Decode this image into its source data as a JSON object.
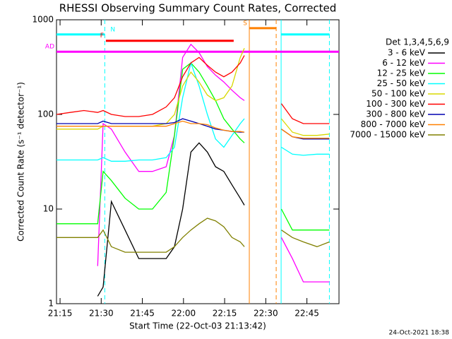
{
  "chart_data": {
    "type": "line",
    "title": "RHESSI Observing Summary Count Rates, Corrected",
    "x_label": "Start Time (22-Oct-03 21:13:42)",
    "y_label": "Corrected Count Rate (s⁻¹ detector⁻¹)",
    "legend_title": "Det 1,3,4,5,6,9",
    "footer": "24-Oct-2021 18:38",
    "log_y": true,
    "xlim": [
      0,
      103
    ],
    "ylim": [
      1,
      1000
    ],
    "yticks": [
      1,
      10,
      100,
      1000
    ],
    "xticks": [
      {
        "value": 1.3,
        "label": "21:15"
      },
      {
        "value": 16.3,
        "label": "21:30"
      },
      {
        "value": 31.3,
        "label": "21:45"
      },
      {
        "value": 46.3,
        "label": "22:00"
      },
      {
        "value": 61.3,
        "label": "22:15"
      },
      {
        "value": 76.3,
        "label": "22:30"
      },
      {
        "value": 91.3,
        "label": "22:45"
      }
    ],
    "x": [
      0,
      5,
      10,
      15,
      17,
      20,
      25,
      30,
      35,
      40,
      43,
      46,
      49,
      52,
      55,
      58,
      61,
      64,
      67,
      68.5,
      75,
      82,
      86,
      90,
      95,
      99.5
    ],
    "series": [
      {
        "name": "3 - 6 keV",
        "color": "#000000",
        "values": [
          null,
          null,
          null,
          1.2,
          1.5,
          12,
          6,
          3,
          3,
          3,
          4,
          10,
          40,
          50,
          40,
          28,
          25,
          18,
          13,
          11,
          null,
          null,
          null,
          null,
          null,
          null
        ]
      },
      {
        "name": "6 - 12 keV",
        "color": "#ff00ff",
        "values": [
          null,
          null,
          null,
          2.5,
          80,
          70,
          40,
          25,
          25,
          28,
          60,
          400,
          550,
          450,
          320,
          260,
          220,
          180,
          150,
          140,
          null,
          5,
          3,
          1.7,
          1.7,
          1.7
        ]
      },
      {
        "name": "12 - 25 keV",
        "color": "#00ff00",
        "values": [
          7,
          7,
          7,
          7,
          25,
          20,
          13,
          10,
          10,
          15,
          60,
          300,
          350,
          280,
          200,
          140,
          90,
          70,
          55,
          50,
          null,
          10,
          6,
          6,
          6,
          6
        ]
      },
      {
        "name": "25 - 50 keV",
        "color": "#00ffff",
        "values": [
          33,
          33,
          33,
          33,
          35,
          32,
          32,
          33,
          33,
          35,
          45,
          150,
          350,
          200,
          100,
          55,
          45,
          60,
          80,
          90,
          null,
          45,
          38,
          37,
          38,
          38
        ]
      },
      {
        "name": "50 - 100 keV",
        "color": "#d8d800",
        "values": [
          70,
          70,
          70,
          70,
          75,
          75,
          75,
          75,
          75,
          80,
          100,
          200,
          280,
          220,
          160,
          140,
          150,
          200,
          400,
          500,
          null,
          90,
          65,
          60,
          60,
          62
        ]
      },
      {
        "name": "100 - 300 keV",
        "color": "#ff0000",
        "values": [
          100,
          105,
          110,
          105,
          110,
          100,
          95,
          95,
          100,
          120,
          150,
          250,
          350,
          400,
          330,
          280,
          250,
          280,
          350,
          420,
          null,
          130,
          90,
          80,
          80,
          80
        ]
      },
      {
        "name": "300 - 800 keV",
        "color": "#0000b0",
        "values": [
          80,
          80,
          80,
          80,
          85,
          80,
          80,
          80,
          80,
          80,
          82,
          90,
          85,
          80,
          75,
          70,
          68,
          66,
          65,
          65,
          null,
          70,
          58,
          55,
          55,
          55
        ]
      },
      {
        "name": "800 - 7000 keV",
        "color": "#ff8000",
        "values": [
          75,
          75,
          75,
          75,
          75,
          75,
          75,
          75,
          75,
          75,
          80,
          85,
          80,
          80,
          78,
          72,
          68,
          66,
          66,
          65,
          null,
          70,
          58,
          56,
          56,
          56
        ]
      },
      {
        "name": "7000 - 15000 keV",
        "color": "#808000",
        "values": [
          5,
          5,
          5,
          5,
          6,
          4,
          3.5,
          3.5,
          3.5,
          3.5,
          4,
          5,
          6,
          7,
          8,
          7.5,
          6.5,
          5,
          4.5,
          4,
          null,
          6,
          5,
          4.5,
          4,
          4.5
        ]
      }
    ],
    "flags": [
      {
        "label": "N",
        "color": "#00ffff",
        "y": 700,
        "segments": [
          [
            0,
            17.6
          ],
          [
            81.9,
            99.5
          ]
        ]
      },
      {
        "label": "F",
        "color": "#ff0000",
        "y": 600,
        "segments": [
          [
            18,
            64.6
          ]
        ]
      },
      {
        "label": "AD",
        "color": "#ff00ff",
        "y": 460,
        "segments": [
          [
            0,
            103
          ]
        ]
      },
      {
        "label": "S",
        "color": "#ff8000",
        "y": 815,
        "segments": [
          [
            70.3,
            80.1
          ]
        ]
      }
    ],
    "vlines": [
      {
        "x": 17.6,
        "color": "#00ffff",
        "dashed": true
      },
      {
        "x": 70.3,
        "color": "#ff8000",
        "dashed": false
      },
      {
        "x": 80.1,
        "color": "#ff8000",
        "dashed": true
      },
      {
        "x": 81.9,
        "color": "#00ffff",
        "dashed": false
      },
      {
        "x": 99.5,
        "color": "#00ffff",
        "dashed": true
      }
    ]
  }
}
